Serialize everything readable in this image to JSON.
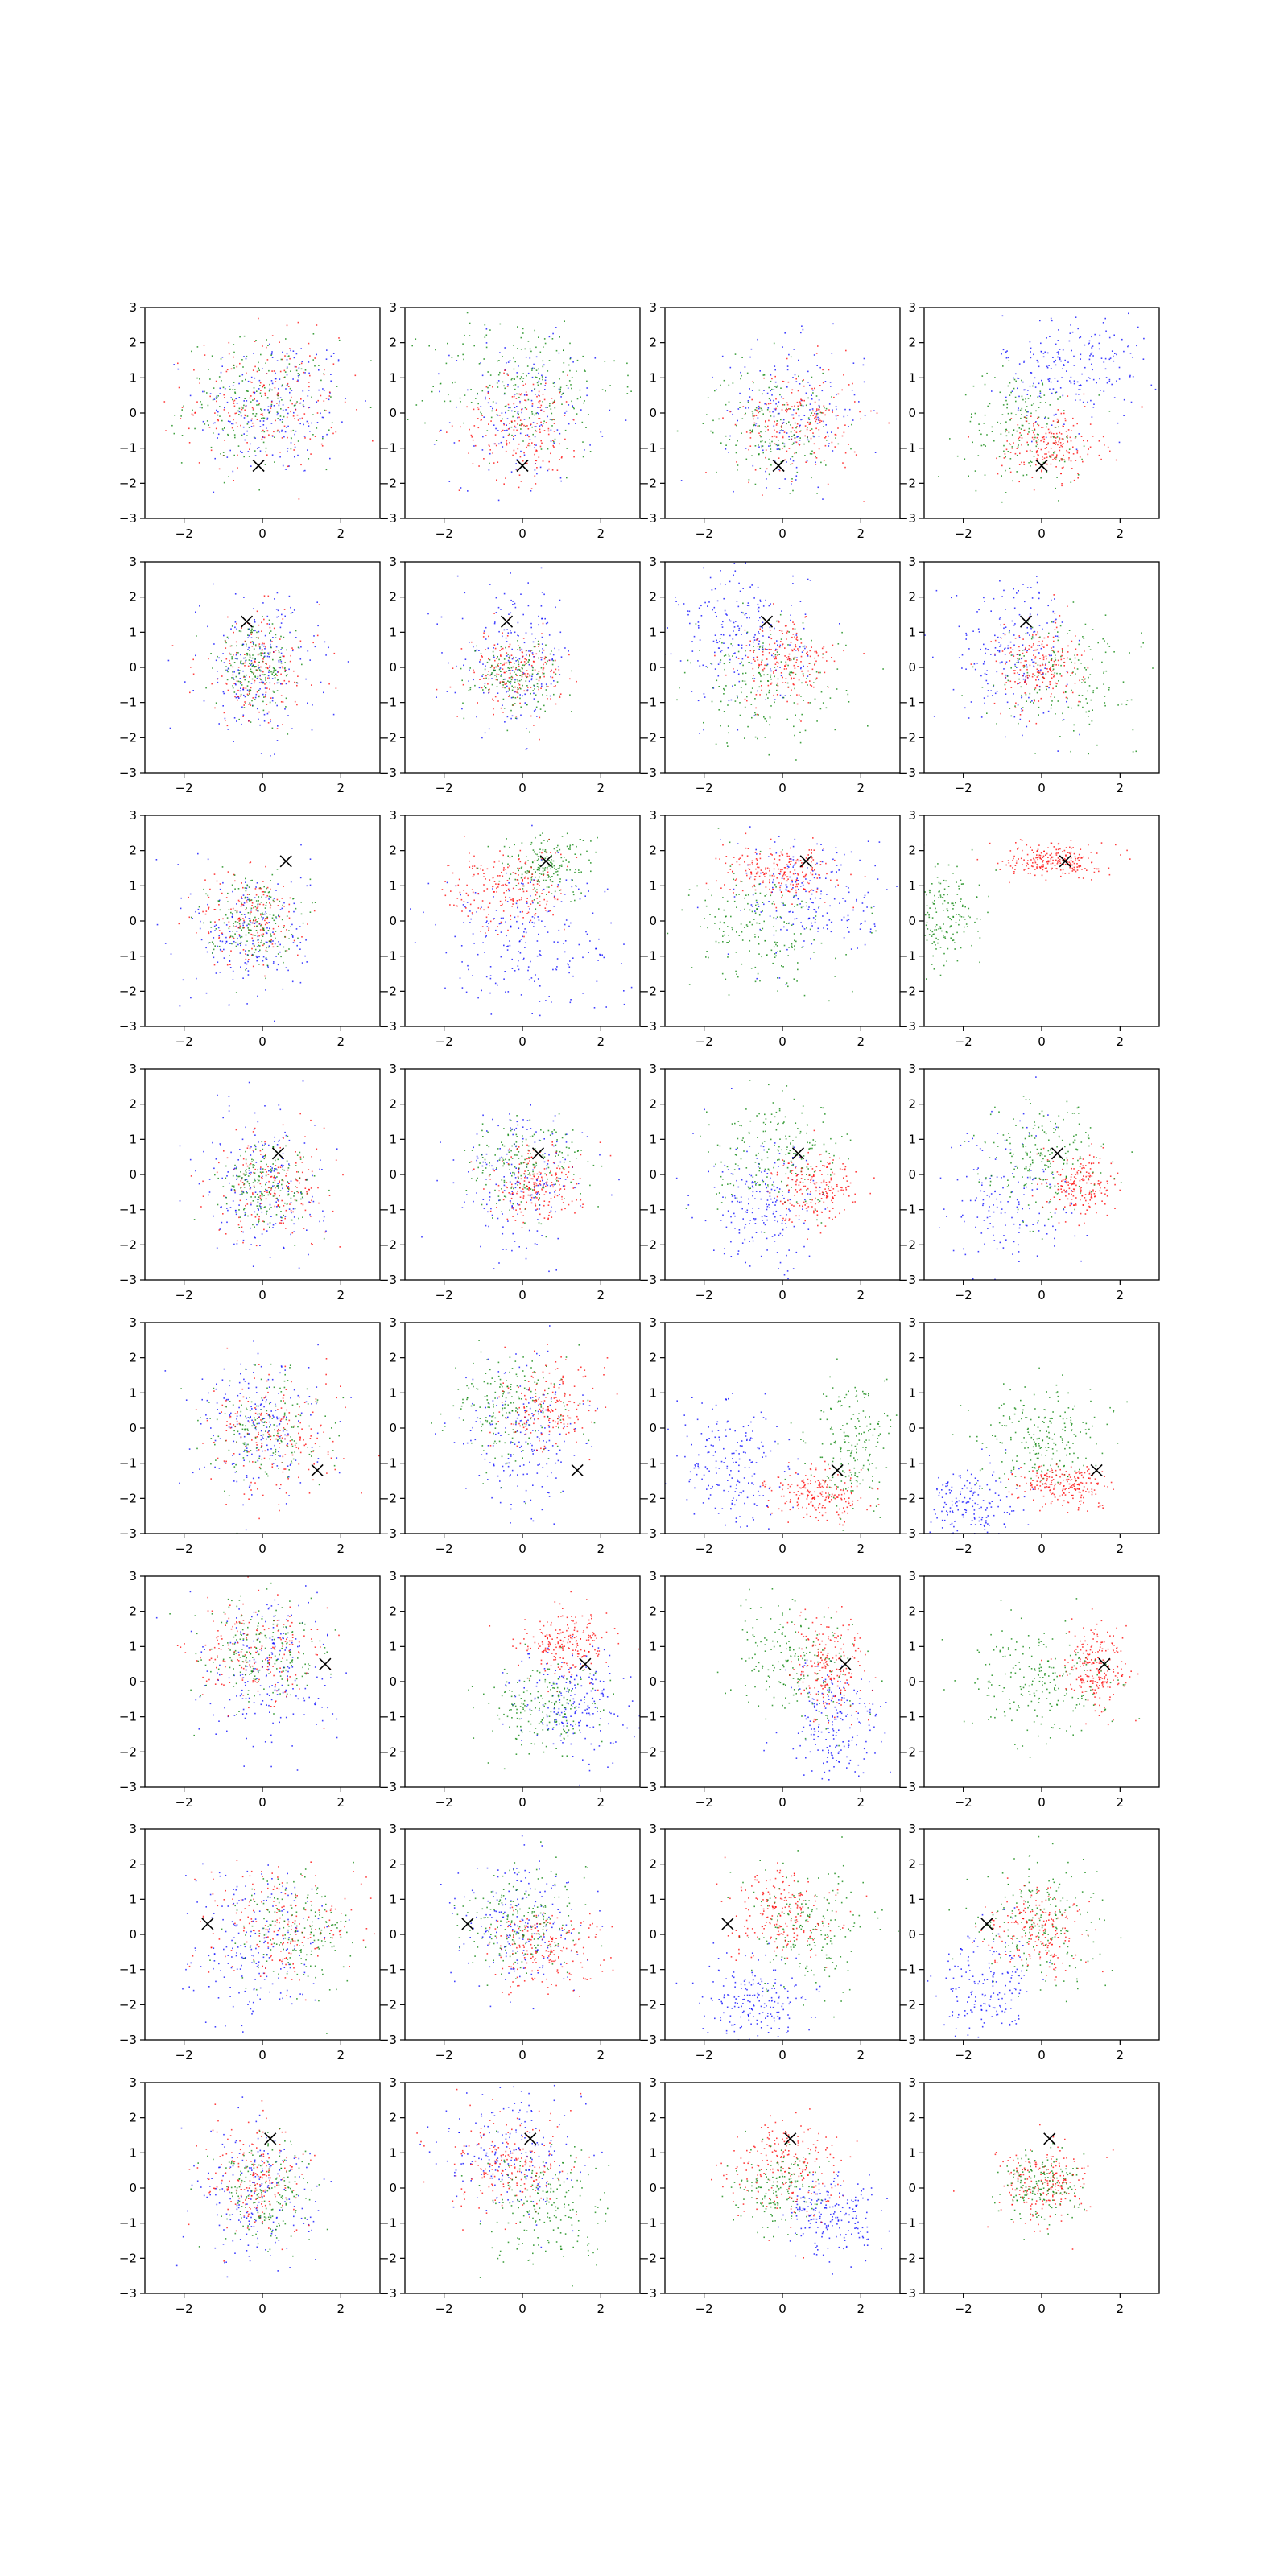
{
  "figure": {
    "layout": {
      "rows": 8,
      "cols": 4
    },
    "axis": {
      "xlim": [
        -3,
        3
      ],
      "ylim": [
        -3,
        3
      ],
      "x_ticks": [
        -2,
        0,
        2
      ],
      "y_ticks": [
        -3,
        -2,
        -1,
        0,
        1,
        2,
        3
      ],
      "x_tick_labels": [
        "−2",
        "0",
        "2"
      ],
      "y_tick_labels": [
        "−3",
        "−2",
        "−1",
        "0",
        "1",
        "2",
        "3"
      ]
    },
    "colors": {
      "blue": "#0000ff",
      "red": "#ff0000",
      "green": "#008000",
      "marker": "#000000"
    }
  },
  "chart_data": [
    {
      "type": "scatter",
      "row": 1,
      "col": 1,
      "marker": [
        -0.1,
        -1.5
      ],
      "series": [
        {
          "color": "blue",
          "cx": 0.3,
          "cy": 0.2,
          "sx": 1.0,
          "sy": 1.05,
          "n": 220
        },
        {
          "color": "red",
          "cx": 0.0,
          "cy": 0.3,
          "sx": 1.0,
          "sy": 0.95,
          "n": 200
        },
        {
          "color": "green",
          "cx": -0.1,
          "cy": 0.3,
          "sx": 0.95,
          "sy": 0.9,
          "n": 200
        }
      ]
    },
    {
      "type": "scatter",
      "row": 1,
      "col": 2,
      "marker": [
        0.0,
        -1.5
      ],
      "series": [
        {
          "color": "blue",
          "cx": 0.0,
          "cy": 0.0,
          "sx": 0.9,
          "sy": 1.0,
          "n": 170
        },
        {
          "color": "green",
          "cx": 0.0,
          "cy": 0.8,
          "sx": 1.2,
          "sy": 1.0,
          "n": 240
        },
        {
          "color": "red",
          "cx": 0.0,
          "cy": -0.4,
          "sx": 0.8,
          "sy": 0.75,
          "n": 190
        }
      ]
    },
    {
      "type": "scatter",
      "row": 1,
      "col": 3,
      "marker": [
        -0.1,
        -1.5
      ],
      "series": [
        {
          "color": "blue",
          "cx": 0.3,
          "cy": 0.1,
          "sx": 0.9,
          "sy": 0.95,
          "n": 190
        },
        {
          "color": "red",
          "cx": 0.4,
          "cy": -0.2,
          "sx": 0.8,
          "sy": 0.8,
          "n": 200
        },
        {
          "color": "green",
          "cx": -0.3,
          "cy": -0.3,
          "sx": 0.8,
          "sy": 0.8,
          "n": 180
        }
      ]
    },
    {
      "type": "scatter",
      "row": 1,
      "col": 4,
      "marker": [
        0.0,
        -1.5
      ],
      "series": [
        {
          "color": "blue",
          "cx": 0.8,
          "cy": 1.3,
          "sx": 0.9,
          "sy": 0.8,
          "n": 220
        },
        {
          "color": "green",
          "cx": -0.5,
          "cy": -0.4,
          "sx": 0.8,
          "sy": 0.8,
          "n": 190
        },
        {
          "color": "red",
          "cx": 0.2,
          "cy": -0.9,
          "sx": 0.65,
          "sy": 0.5,
          "n": 200
        }
      ]
    },
    {
      "type": "scatter",
      "row": 2,
      "col": 1,
      "marker": [
        -0.4,
        1.3
      ],
      "series": [
        {
          "color": "blue",
          "cx": -0.1,
          "cy": 0.0,
          "sx": 0.75,
          "sy": 1.0,
          "n": 200
        },
        {
          "color": "red",
          "cx": -0.1,
          "cy": 0.0,
          "sx": 0.8,
          "sy": 0.8,
          "n": 170
        },
        {
          "color": "green",
          "cx": -0.2,
          "cy": 0.0,
          "sx": 0.5,
          "sy": 0.55,
          "n": 200
        }
      ]
    },
    {
      "type": "scatter",
      "row": 2,
      "col": 2,
      "marker": [
        -0.4,
        1.3
      ],
      "series": [
        {
          "color": "blue",
          "cx": -0.2,
          "cy": 0.3,
          "sx": 0.75,
          "sy": 1.0,
          "n": 190
        },
        {
          "color": "red",
          "cx": -0.2,
          "cy": -0.1,
          "sx": 0.6,
          "sy": 0.55,
          "n": 180
        },
        {
          "color": "green",
          "cx": -0.2,
          "cy": -0.2,
          "sx": 0.55,
          "sy": 0.5,
          "n": 180
        }
      ]
    },
    {
      "type": "scatter",
      "row": 2,
      "col": 3,
      "marker": [
        -0.4,
        1.3
      ],
      "series": [
        {
          "color": "blue",
          "cx": -1.0,
          "cy": 0.9,
          "sx": 0.8,
          "sy": 1.0,
          "n": 220
        },
        {
          "color": "green",
          "cx": -0.4,
          "cy": -0.5,
          "sx": 1.0,
          "sy": 0.85,
          "n": 200
        },
        {
          "color": "red",
          "cx": 0.1,
          "cy": 0.2,
          "sx": 0.6,
          "sy": 0.6,
          "n": 200
        }
      ]
    },
    {
      "type": "scatter",
      "row": 2,
      "col": 4,
      "marker": [
        -0.4,
        1.3
      ],
      "series": [
        {
          "color": "blue",
          "cx": -0.8,
          "cy": 0.6,
          "sx": 0.75,
          "sy": 1.0,
          "n": 210
        },
        {
          "color": "green",
          "cx": 0.6,
          "cy": -0.2,
          "sx": 0.9,
          "sy": 0.8,
          "n": 190
        },
        {
          "color": "red",
          "cx": -0.1,
          "cy": 0.1,
          "sx": 0.55,
          "sy": 0.6,
          "n": 200
        }
      ]
    },
    {
      "type": "scatter",
      "row": 3,
      "col": 1,
      "marker": [
        0.6,
        1.7
      ],
      "series": [
        {
          "color": "blue",
          "cx": -0.3,
          "cy": -0.4,
          "sx": 0.75,
          "sy": 1.0,
          "n": 200
        },
        {
          "color": "red",
          "cx": -0.3,
          "cy": 0.1,
          "sx": 0.65,
          "sy": 0.7,
          "n": 170
        },
        {
          "color": "green",
          "cx": -0.3,
          "cy": 0.1,
          "sx": 0.55,
          "sy": 0.6,
          "n": 200
        }
      ]
    },
    {
      "type": "scatter",
      "row": 3,
      "col": 2,
      "marker": [
        0.6,
        1.7
      ],
      "series": [
        {
          "color": "blue",
          "cx": 0.0,
          "cy": -0.5,
          "sx": 1.2,
          "sy": 1.1,
          "n": 230
        },
        {
          "color": "green",
          "cx": 0.6,
          "cy": 1.6,
          "sx": 0.6,
          "sy": 0.45,
          "n": 190
        },
        {
          "color": "red",
          "cx": -0.4,
          "cy": 0.9,
          "sx": 0.75,
          "sy": 0.6,
          "n": 220
        }
      ]
    },
    {
      "type": "scatter",
      "row": 3,
      "col": 3,
      "marker": [
        0.6,
        1.7
      ],
      "series": [
        {
          "color": "blue",
          "cx": 0.8,
          "cy": 0.7,
          "sx": 1.0,
          "sy": 0.9,
          "n": 210
        },
        {
          "color": "green",
          "cx": -0.6,
          "cy": -0.2,
          "sx": 0.9,
          "sy": 0.85,
          "n": 200
        },
        {
          "color": "red",
          "cx": -0.1,
          "cy": 1.4,
          "sx": 0.7,
          "sy": 0.35,
          "n": 220
        }
      ]
    },
    {
      "type": "scatter",
      "row": 3,
      "col": 4,
      "marker": [
        0.6,
        1.7
      ],
      "series": [
        {
          "color": "green",
          "cx": -2.6,
          "cy": 0.1,
          "sx": 0.5,
          "sy": 0.7,
          "n": 200
        },
        {
          "color": "red",
          "cx": 0.3,
          "cy": 1.75,
          "sx": 0.6,
          "sy": 0.25,
          "n": 230
        }
      ]
    },
    {
      "type": "scatter",
      "row": 4,
      "col": 1,
      "marker": [
        0.4,
        0.6
      ],
      "series": [
        {
          "color": "blue",
          "cx": 0.0,
          "cy": -0.2,
          "sx": 0.75,
          "sy": 1.1,
          "n": 200
        },
        {
          "color": "red",
          "cx": 0.3,
          "cy": -0.3,
          "sx": 0.8,
          "sy": 0.75,
          "n": 180
        },
        {
          "color": "green",
          "cx": 0.1,
          "cy": -0.3,
          "sx": 0.6,
          "sy": 0.6,
          "n": 200
        }
      ]
    },
    {
      "type": "scatter",
      "row": 4,
      "col": 2,
      "marker": [
        0.4,
        0.6
      ],
      "series": [
        {
          "color": "blue",
          "cx": 0.0,
          "cy": -0.2,
          "sx": 0.8,
          "sy": 1.0,
          "n": 190
        },
        {
          "color": "green",
          "cx": 0.0,
          "cy": 0.3,
          "sx": 0.75,
          "sy": 0.7,
          "n": 200
        },
        {
          "color": "red",
          "cx": 0.3,
          "cy": -0.3,
          "sx": 0.6,
          "sy": 0.5,
          "n": 200
        }
      ]
    },
    {
      "type": "scatter",
      "row": 4,
      "col": 3,
      "marker": [
        0.4,
        0.6
      ],
      "series": [
        {
          "color": "blue",
          "cx": -0.5,
          "cy": -1.0,
          "sx": 0.7,
          "sy": 0.9,
          "n": 210
        },
        {
          "color": "green",
          "cx": 0.0,
          "cy": 0.5,
          "sx": 0.85,
          "sy": 0.75,
          "n": 210
        },
        {
          "color": "red",
          "cx": 0.8,
          "cy": -0.3,
          "sx": 0.55,
          "sy": 0.5,
          "n": 200
        }
      ]
    },
    {
      "type": "scatter",
      "row": 4,
      "col": 4,
      "marker": [
        0.4,
        0.6
      ],
      "series": [
        {
          "color": "blue",
          "cx": -0.8,
          "cy": -0.8,
          "sx": 0.8,
          "sy": 1.1,
          "n": 160
        },
        {
          "color": "green",
          "cx": 0.0,
          "cy": 0.5,
          "sx": 0.8,
          "sy": 0.75,
          "n": 210
        },
        {
          "color": "red",
          "cx": 1.0,
          "cy": -0.3,
          "sx": 0.4,
          "sy": 0.45,
          "n": 190
        }
      ]
    },
    {
      "type": "scatter",
      "row": 5,
      "col": 1,
      "marker": [
        1.4,
        -1.2
      ],
      "series": [
        {
          "color": "blue",
          "cx": -0.1,
          "cy": 0.2,
          "sx": 0.8,
          "sy": 1.0,
          "n": 210
        },
        {
          "color": "red",
          "cx": 0.4,
          "cy": -0.2,
          "sx": 0.85,
          "sy": 0.85,
          "n": 190
        },
        {
          "color": "green",
          "cx": 0.1,
          "cy": 0.0,
          "sx": 0.7,
          "sy": 0.8,
          "n": 180
        }
      ]
    },
    {
      "type": "scatter",
      "row": 5,
      "col": 2,
      "marker": [
        1.4,
        -1.2
      ],
      "series": [
        {
          "color": "blue",
          "cx": 0.0,
          "cy": -0.2,
          "sx": 0.75,
          "sy": 1.1,
          "n": 200
        },
        {
          "color": "green",
          "cx": -0.3,
          "cy": 0.6,
          "sx": 0.8,
          "sy": 0.8,
          "n": 200
        },
        {
          "color": "red",
          "cx": 0.7,
          "cy": 0.6,
          "sx": 0.6,
          "sy": 0.6,
          "n": 180
        }
      ]
    },
    {
      "type": "scatter",
      "row": 5,
      "col": 3,
      "marker": [
        1.4,
        -1.2
      ],
      "series": [
        {
          "color": "blue",
          "cx": -1.4,
          "cy": -1.0,
          "sx": 0.7,
          "sy": 0.9,
          "n": 200
        },
        {
          "color": "green",
          "cx": 1.8,
          "cy": -0.5,
          "sx": 0.55,
          "sy": 0.9,
          "n": 200
        },
        {
          "color": "red",
          "cx": 0.9,
          "cy": -1.9,
          "sx": 0.6,
          "sy": 0.35,
          "n": 210
        }
      ]
    },
    {
      "type": "scatter",
      "row": 5,
      "col": 4,
      "marker": [
        1.4,
        -1.2
      ],
      "series": [
        {
          "color": "blue",
          "cx": -1.9,
          "cy": -2.2,
          "sx": 0.6,
          "sy": 0.6,
          "n": 180
        },
        {
          "color": "green",
          "cx": 0.0,
          "cy": -0.2,
          "sx": 0.8,
          "sy": 0.7,
          "n": 230
        },
        {
          "color": "red",
          "cx": 0.6,
          "cy": -1.6,
          "sx": 0.55,
          "sy": 0.3,
          "n": 210
        }
      ]
    },
    {
      "type": "scatter",
      "row": 6,
      "col": 1,
      "marker": [
        1.6,
        0.5
      ],
      "series": [
        {
          "color": "blue",
          "cx": 0.2,
          "cy": 0.3,
          "sx": 0.8,
          "sy": 1.1,
          "n": 210
        },
        {
          "color": "red",
          "cx": -0.3,
          "cy": 0.8,
          "sx": 0.9,
          "sy": 0.8,
          "n": 190
        },
        {
          "color": "green",
          "cx": -0.2,
          "cy": 0.8,
          "sx": 0.85,
          "sy": 0.8,
          "n": 200
        }
      ]
    },
    {
      "type": "scatter",
      "row": 6,
      "col": 2,
      "marker": [
        1.6,
        0.5
      ],
      "series": [
        {
          "color": "blue",
          "cx": 1.3,
          "cy": -0.7,
          "sx": 0.75,
          "sy": 0.8,
          "n": 210
        },
        {
          "color": "green",
          "cx": 0.6,
          "cy": -0.8,
          "sx": 0.75,
          "sy": 0.65,
          "n": 200
        },
        {
          "color": "red",
          "cx": 1.1,
          "cy": 1.1,
          "sx": 0.55,
          "sy": 0.5,
          "n": 210
        }
      ]
    },
    {
      "type": "scatter",
      "row": 6,
      "col": 3,
      "marker": [
        1.6,
        0.5
      ],
      "series": [
        {
          "color": "blue",
          "cx": 1.3,
          "cy": -1.2,
          "sx": 0.6,
          "sy": 0.9,
          "n": 200
        },
        {
          "color": "green",
          "cx": 0.3,
          "cy": 0.6,
          "sx": 0.85,
          "sy": 0.8,
          "n": 200
        },
        {
          "color": "red",
          "cx": 1.2,
          "cy": 0.4,
          "sx": 0.45,
          "sy": 0.75,
          "n": 210
        }
      ]
    },
    {
      "type": "scatter",
      "row": 6,
      "col": 4,
      "marker": [
        1.6,
        0.5
      ],
      "series": [
        {
          "color": "green",
          "cx": 0.0,
          "cy": 0.1,
          "sx": 0.9,
          "sy": 0.8,
          "n": 220
        },
        {
          "color": "red",
          "cx": 1.4,
          "cy": 0.4,
          "sx": 0.4,
          "sy": 0.55,
          "n": 220
        }
      ]
    },
    {
      "type": "scatter",
      "row": 7,
      "col": 1,
      "marker": [
        -1.4,
        0.3
      ],
      "series": [
        {
          "color": "blue",
          "cx": -0.3,
          "cy": -0.3,
          "sx": 0.9,
          "sy": 1.1,
          "n": 210
        },
        {
          "color": "red",
          "cx": 0.4,
          "cy": 0.3,
          "sx": 0.85,
          "sy": 0.8,
          "n": 200
        },
        {
          "color": "green",
          "cx": 0.8,
          "cy": 0.1,
          "sx": 0.8,
          "sy": 0.8,
          "n": 190
        }
      ]
    },
    {
      "type": "scatter",
      "row": 7,
      "col": 2,
      "marker": [
        -1.4,
        0.3
      ],
      "series": [
        {
          "color": "blue",
          "cx": -0.1,
          "cy": 0.4,
          "sx": 0.8,
          "sy": 0.95,
          "n": 200
        },
        {
          "color": "red",
          "cx": 0.5,
          "cy": -0.4,
          "sx": 0.75,
          "sy": 0.6,
          "n": 200
        },
        {
          "color": "green",
          "cx": 0.0,
          "cy": 0.4,
          "sx": 0.8,
          "sy": 0.75,
          "n": 200
        }
      ]
    },
    {
      "type": "scatter",
      "row": 7,
      "col": 3,
      "marker": [
        -1.4,
        0.3
      ],
      "series": [
        {
          "color": "blue",
          "cx": -0.6,
          "cy": -1.9,
          "sx": 0.7,
          "sy": 0.6,
          "n": 200
        },
        {
          "color": "green",
          "cx": 0.7,
          "cy": 0.2,
          "sx": 0.8,
          "sy": 0.85,
          "n": 200
        },
        {
          "color": "red",
          "cx": -0.1,
          "cy": 0.6,
          "sx": 0.65,
          "sy": 0.6,
          "n": 210
        }
      ]
    },
    {
      "type": "scatter",
      "row": 7,
      "col": 4,
      "marker": [
        -1.4,
        0.3
      ],
      "series": [
        {
          "color": "blue",
          "cx": -1.5,
          "cy": -1.5,
          "sx": 0.6,
          "sy": 0.9,
          "n": 180
        },
        {
          "color": "green",
          "cx": 0.0,
          "cy": 0.4,
          "sx": 0.85,
          "sy": 0.9,
          "n": 210
        },
        {
          "color": "red",
          "cx": -0.2,
          "cy": 0.1,
          "sx": 0.6,
          "sy": 0.6,
          "n": 200
        }
      ]
    },
    {
      "type": "scatter",
      "row": 8,
      "col": 1,
      "marker": [
        0.2,
        1.4
      ],
      "series": [
        {
          "color": "blue",
          "cx": -0.3,
          "cy": -0.2,
          "sx": 0.8,
          "sy": 1.1,
          "n": 200
        },
        {
          "color": "red",
          "cx": -0.2,
          "cy": 0.3,
          "sx": 0.65,
          "sy": 0.8,
          "n": 190
        },
        {
          "color": "green",
          "cx": 0.0,
          "cy": 0.0,
          "sx": 0.6,
          "sy": 0.75,
          "n": 190
        }
      ]
    },
    {
      "type": "scatter",
      "row": 8,
      "col": 2,
      "marker": [
        0.2,
        1.4
      ],
      "series": [
        {
          "color": "blue",
          "cx": -0.4,
          "cy": 0.9,
          "sx": 0.85,
          "sy": 0.9,
          "n": 200
        },
        {
          "color": "red",
          "cx": -0.4,
          "cy": 0.7,
          "sx": 0.75,
          "sy": 0.8,
          "n": 200
        },
        {
          "color": "green",
          "cx": 0.6,
          "cy": -0.5,
          "sx": 0.8,
          "sy": 0.8,
          "n": 200
        }
      ]
    },
    {
      "type": "scatter",
      "row": 8,
      "col": 3,
      "marker": [
        0.2,
        1.4
      ],
      "series": [
        {
          "color": "blue",
          "cx": 1.3,
          "cy": -0.8,
          "sx": 0.6,
          "sy": 0.6,
          "n": 200
        },
        {
          "color": "red",
          "cx": 0.0,
          "cy": 0.5,
          "sx": 0.7,
          "sy": 0.7,
          "n": 220
        },
        {
          "color": "green",
          "cx": -0.2,
          "cy": 0.0,
          "sx": 0.55,
          "sy": 0.55,
          "n": 170
        }
      ]
    },
    {
      "type": "scatter",
      "row": 8,
      "col": 4,
      "marker": [
        0.2,
        1.4
      ],
      "series": [
        {
          "color": "red",
          "cx": 0.0,
          "cy": 0.1,
          "sx": 0.55,
          "sy": 0.55,
          "n": 210
        },
        {
          "color": "green",
          "cx": 0.0,
          "cy": 0.0,
          "sx": 0.5,
          "sy": 0.55,
          "n": 180
        }
      ]
    }
  ]
}
